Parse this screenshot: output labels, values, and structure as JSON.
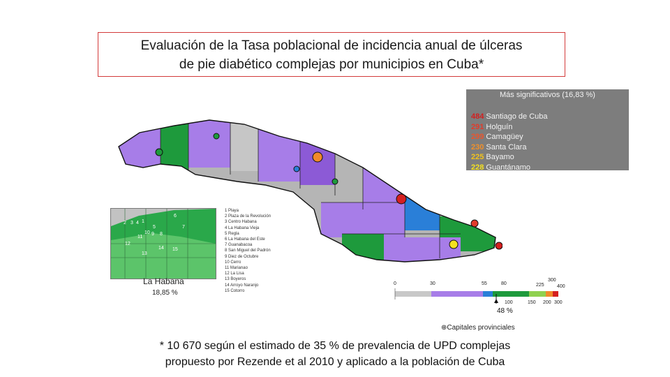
{
  "title": {
    "line1": "Evaluación de la Tasa poblacional de incidencia anual de úlceras",
    "line2": "de pie diabético complejas por municipios en Cuba*"
  },
  "stats_panel": {
    "header": "Más significativos (16,83 %)",
    "rows": [
      {
        "value": "484",
        "city": "Santiago de Cuba",
        "color": "#d41f1f"
      },
      {
        "value": "291",
        "city": "Holguín",
        "color": "#e23b2a"
      },
      {
        "value": "299",
        "city": "Camagüey",
        "color": "#e9552d"
      },
      {
        "value": "230",
        "city": "Santa Clara",
        "color": "#f0902a"
      },
      {
        "value": "225",
        "city": "Bayamo",
        "color": "#f2c21c"
      },
      {
        "value": "228",
        "city": "Guantánamo",
        "color": "#f4e020"
      }
    ]
  },
  "inset": {
    "label": "La Habana",
    "percent": "18,85 %",
    "numbers": [
      "1",
      "2",
      "3",
      "4",
      "5",
      "6",
      "7",
      "8",
      "9",
      "10",
      "11",
      "12",
      "13",
      "14",
      "15"
    ]
  },
  "municipalities": [
    "1  Playa",
    "2  Plaza de la Revolución",
    "3  Centro Habana",
    "4  La Habana Vieja",
    "5  Regla",
    "6  La Habana del Este",
    "7  Guanabacoa",
    "8  San Miguel del Padrón",
    "9  Diez de Octubre",
    "10 Cerro",
    "11 Marianao",
    "12 La Lisa",
    "13 Boyeros",
    "14 Arroyo Naranjo",
    "15 Cotorro"
  ],
  "scale": {
    "top_ticks": [
      "0",
      "30",
      "55",
      "80",
      "225",
      "300",
      "400"
    ],
    "bottom_ticks": [
      "100",
      "150",
      "200",
      "300"
    ],
    "colors": {
      "gray": "#c8c8c8",
      "purple": "#a77de8",
      "blue": "#2a7fd8",
      "green": "#1e9a3c",
      "lightgreen": "#8fd14f",
      "orange": "#f08a2a",
      "red": "#d52020"
    },
    "marker_percent": "48 %"
  },
  "capitals_legend": "Capitales provinciales",
  "capitals_icon": "capital-marker-icon",
  "footnote": {
    "line1": "*  10 670 según el estimado de 35 % de prevalencia de UPD complejas",
    "line2": "propuesto por Rezende et al 2010 y aplicado a la población de Cuba"
  }
}
